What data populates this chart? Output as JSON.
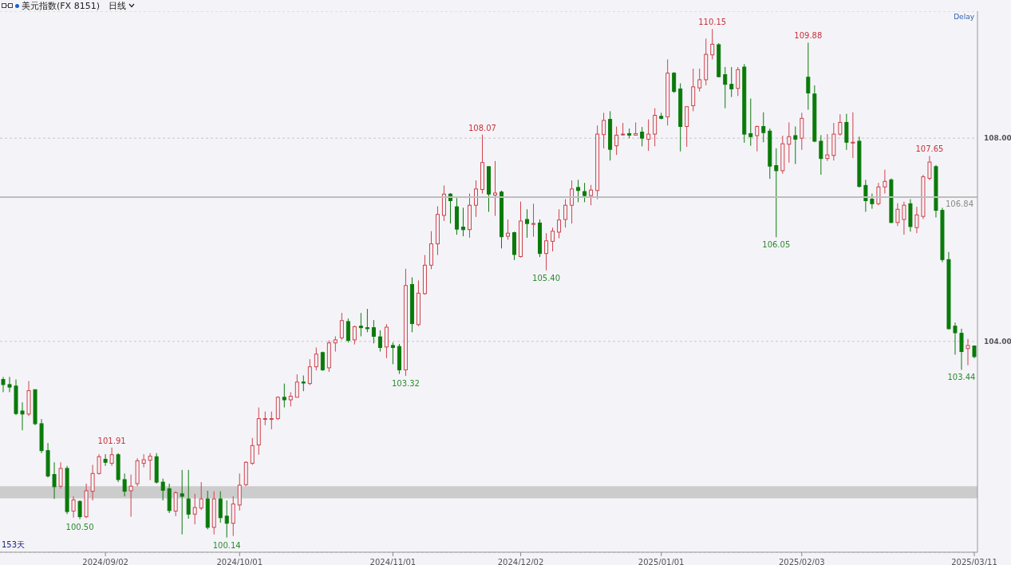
{
  "chart_data": {
    "type": "candlestick",
    "title": "美元指数(FX 8151)",
    "subtitle": "日线",
    "categories": [
      null,
      null,
      null,
      null,
      null,
      null,
      null,
      null,
      null,
      null,
      null,
      null,
      null,
      null,
      null,
      null,
      "2024/09/02",
      null,
      null,
      null,
      null,
      null,
      null,
      null,
      null,
      null,
      null,
      null,
      null,
      null,
      null,
      null,
      null,
      null,
      null,
      null,
      null,
      "2024/10/01",
      null,
      null,
      null,
      null,
      null,
      null,
      null,
      null,
      null,
      null,
      null,
      null,
      null,
      null,
      null,
      null,
      null,
      null,
      null,
      null,
      null,
      null,
      null,
      "2024/11/01",
      null,
      null,
      null,
      null,
      null,
      null,
      null,
      null,
      null,
      null,
      null,
      null,
      null,
      null,
      null,
      null,
      null,
      null,
      null,
      "2024/12/02",
      null,
      null,
      null,
      null,
      null,
      null,
      null,
      null,
      null,
      null,
      null,
      null,
      null,
      null,
      null,
      null,
      null,
      null,
      null,
      null,
      null,
      "2025/01/01",
      null,
      null,
      null,
      null,
      null,
      null,
      null,
      null,
      null,
      null,
      null,
      null,
      null,
      null,
      null,
      null,
      null,
      null,
      null,
      null,
      null,
      "2025/02/03",
      null,
      null,
      null,
      null,
      null,
      null,
      null,
      null,
      null,
      null,
      null,
      null,
      null,
      null,
      null,
      null,
      null,
      null,
      null,
      null,
      null,
      null,
      null,
      null,
      null,
      null,
      "2025/03/11"
    ],
    "ohlc": [
      [
        103.25,
        103.3,
        103.0,
        103.15
      ],
      [
        103.15,
        103.3,
        103.0,
        103.1
      ],
      [
        103.12,
        103.25,
        102.55,
        102.58
      ],
      [
        102.63,
        102.8,
        102.25,
        102.57
      ],
      [
        102.57,
        103.22,
        102.53,
        103.03
      ],
      [
        103.05,
        103.05,
        102.35,
        102.38
      ],
      [
        102.38,
        102.47,
        101.8,
        101.85
      ],
      [
        101.85,
        102.0,
        101.32,
        101.35
      ],
      [
        101.38,
        101.62,
        100.9,
        101.14
      ],
      [
        101.15,
        101.62,
        101.1,
        101.5
      ],
      [
        101.5,
        101.55,
        100.6,
        100.65
      ],
      [
        100.66,
        100.95,
        100.53,
        100.88
      ],
      [
        100.85,
        100.87,
        100.5,
        100.55
      ],
      [
        100.55,
        101.2,
        100.52,
        101.06
      ],
      [
        101.05,
        101.57,
        100.87,
        101.4
      ],
      [
        101.4,
        101.78,
        101.38,
        101.73
      ],
      [
        101.68,
        101.78,
        101.55,
        101.62
      ],
      [
        101.6,
        101.91,
        101.55,
        101.77
      ],
      [
        101.77,
        101.8,
        101.23,
        101.28
      ],
      [
        101.28,
        101.4,
        100.95,
        101.05
      ],
      [
        101.06,
        101.38,
        100.55,
        101.15
      ],
      [
        101.2,
        101.7,
        101.15,
        101.65
      ],
      [
        101.6,
        101.78,
        101.52,
        101.67
      ],
      [
        101.66,
        101.8,
        101.27,
        101.74
      ],
      [
        101.73,
        101.8,
        101.2,
        101.23
      ],
      [
        101.23,
        101.3,
        100.87,
        101.07
      ],
      [
        101.1,
        101.2,
        100.62,
        100.67
      ],
      [
        100.66,
        101.05,
        100.56,
        101.02
      ],
      [
        101.0,
        101.47,
        100.2,
        100.95
      ],
      [
        100.9,
        101.47,
        100.51,
        100.6
      ],
      [
        100.6,
        101.0,
        100.4,
        100.73
      ],
      [
        100.72,
        101.23,
        100.68,
        100.9
      ],
      [
        100.9,
        101.06,
        100.3,
        100.34
      ],
      [
        100.34,
        101.05,
        100.2,
        100.9
      ],
      [
        100.9,
        101.05,
        100.43,
        100.53
      ],
      [
        100.56,
        100.87,
        100.14,
        100.42
      ],
      [
        100.42,
        100.95,
        100.17,
        100.8
      ],
      [
        100.78,
        101.4,
        100.67,
        101.17
      ],
      [
        101.18,
        101.64,
        101.15,
        101.62
      ],
      [
        101.6,
        102.1,
        101.57,
        101.95
      ],
      [
        101.96,
        102.7,
        101.77,
        102.48
      ],
      [
        102.47,
        102.62,
        102.35,
        102.48
      ],
      [
        102.47,
        102.62,
        102.27,
        102.48
      ],
      [
        102.48,
        102.92,
        102.45,
        102.9
      ],
      [
        102.9,
        103.17,
        102.7,
        102.85
      ],
      [
        102.85,
        103.0,
        102.72,
        102.92
      ],
      [
        102.9,
        103.35,
        102.9,
        103.2
      ],
      [
        103.2,
        103.33,
        103.02,
        103.18
      ],
      [
        103.17,
        103.65,
        103.14,
        103.5
      ],
      [
        103.5,
        103.88,
        103.43,
        103.75
      ],
      [
        103.78,
        103.8,
        103.42,
        103.44
      ],
      [
        103.48,
        104.02,
        103.4,
        103.97
      ],
      [
        103.97,
        104.1,
        103.8,
        104.03
      ],
      [
        104.07,
        104.56,
        104.03,
        104.41
      ],
      [
        104.39,
        104.45,
        103.98,
        104.02
      ],
      [
        104.03,
        104.31,
        103.94,
        104.29
      ],
      [
        104.3,
        104.56,
        104.1,
        104.27
      ],
      [
        104.27,
        104.64,
        104.18,
        104.25
      ],
      [
        104.27,
        104.42,
        103.96,
        104.1
      ],
      [
        104.09,
        104.22,
        103.8,
        103.88
      ],
      [
        103.89,
        104.34,
        103.67,
        104.28
      ],
      [
        103.92,
        103.98,
        103.55,
        103.88
      ],
      [
        103.9,
        103.95,
        103.36,
        103.44
      ],
      [
        103.44,
        105.43,
        103.32,
        105.1
      ],
      [
        105.12,
        105.26,
        104.18,
        104.35
      ],
      [
        104.33,
        105.2,
        104.3,
        104.95
      ],
      [
        104.94,
        105.7,
        104.92,
        105.5
      ],
      [
        105.5,
        106.17,
        105.42,
        105.92
      ],
      [
        105.92,
        106.66,
        105.7,
        106.5
      ],
      [
        106.48,
        107.07,
        106.37,
        106.9
      ],
      [
        106.9,
        106.92,
        106.32,
        106.77
      ],
      [
        106.65,
        106.82,
        106.1,
        106.21
      ],
      [
        106.25,
        106.63,
        106.07,
        106.2
      ],
      [
        106.2,
        106.91,
        106.04,
        106.68
      ],
      [
        106.68,
        107.17,
        106.45,
        107.0
      ],
      [
        106.99,
        108.07,
        106.91,
        107.52
      ],
      [
        107.44,
        107.44,
        106.55,
        106.9
      ],
      [
        106.88,
        107.55,
        106.47,
        106.92
      ],
      [
        106.94,
        106.97,
        105.83,
        106.06
      ],
      [
        106.07,
        106.4,
        106.0,
        106.13
      ],
      [
        106.14,
        106.16,
        105.6,
        105.71
      ],
      [
        105.67,
        106.75,
        105.65,
        106.37
      ],
      [
        106.4,
        106.6,
        106.04,
        106.32
      ],
      [
        106.31,
        106.71,
        106.06,
        106.32
      ],
      [
        106.33,
        106.4,
        105.66,
        105.73
      ],
      [
        105.73,
        106.13,
        105.4,
        105.98
      ],
      [
        105.97,
        106.24,
        105.77,
        106.17
      ],
      [
        106.15,
        106.6,
        106.03,
        106.39
      ],
      [
        106.4,
        106.8,
        106.24,
        106.68
      ],
      [
        106.68,
        107.17,
        106.32,
        107.0
      ],
      [
        107.03,
        107.18,
        106.74,
        106.97
      ],
      [
        106.95,
        107.12,
        106.74,
        106.87
      ],
      [
        106.87,
        107.08,
        106.68,
        106.98
      ],
      [
        106.97,
        108.25,
        106.8,
        108.08
      ],
      [
        108.07,
        108.5,
        107.8,
        108.35
      ],
      [
        108.37,
        108.53,
        107.56,
        107.78
      ],
      [
        107.85,
        108.23,
        107.67,
        108.06
      ],
      [
        108.07,
        108.3,
        108.05,
        108.08
      ],
      [
        108.09,
        108.19,
        108.0,
        108.06
      ],
      [
        108.06,
        108.31,
        108.05,
        108.09
      ],
      [
        108.12,
        108.22,
        107.84,
        108.0
      ],
      [
        107.98,
        108.37,
        107.75,
        108.08
      ],
      [
        108.08,
        108.59,
        107.84,
        108.45
      ],
      [
        108.43,
        108.5,
        108.37,
        108.39
      ],
      [
        108.42,
        109.55,
        108.25,
        109.28
      ],
      [
        109.28,
        109.3,
        108.89,
        108.92
      ],
      [
        108.97,
        109.08,
        107.74,
        108.23
      ],
      [
        108.23,
        108.62,
        107.83,
        108.62
      ],
      [
        108.64,
        109.37,
        108.53,
        109.01
      ],
      [
        108.99,
        109.37,
        108.92,
        109.15
      ],
      [
        109.15,
        109.96,
        109.04,
        109.65
      ],
      [
        109.64,
        110.15,
        109.55,
        109.85
      ],
      [
        109.84,
        109.87,
        109.2,
        109.21
      ],
      [
        109.25,
        109.4,
        108.59,
        109.06
      ],
      [
        109.06,
        109.4,
        108.81,
        108.97
      ],
      [
        108.98,
        109.4,
        108.83,
        109.35
      ],
      [
        109.4,
        109.46,
        107.91,
        108.08
      ],
      [
        108.09,
        108.78,
        107.85,
        108.03
      ],
      [
        108.05,
        108.25,
        107.74,
        108.23
      ],
      [
        108.23,
        108.51,
        107.92,
        108.11
      ],
      [
        108.14,
        108.19,
        107.2,
        107.45
      ],
      [
        107.46,
        107.8,
        106.05,
        107.36
      ],
      [
        107.36,
        108.05,
        107.3,
        107.89
      ],
      [
        107.88,
        108.31,
        107.52,
        108.03
      ],
      [
        108.05,
        108.23,
        107.49,
        107.98
      ],
      [
        108.0,
        108.5,
        107.77,
        108.39
      ],
      [
        109.2,
        109.88,
        108.56,
        108.89
      ],
      [
        108.87,
        109.04,
        107.92,
        107.94
      ],
      [
        107.94,
        108.06,
        107.28,
        107.6
      ],
      [
        107.6,
        108.08,
        107.55,
        107.67
      ],
      [
        107.66,
        108.3,
        107.56,
        108.08
      ],
      [
        108.08,
        108.47,
        108.05,
        108.31
      ],
      [
        108.31,
        108.48,
        107.77,
        107.92
      ],
      [
        107.92,
        108.51,
        107.61,
        107.92
      ],
      [
        107.94,
        108.03,
        107.03,
        107.05
      ],
      [
        107.07,
        107.18,
        106.55,
        106.77
      ],
      [
        106.8,
        106.91,
        106.61,
        106.71
      ],
      [
        106.71,
        107.12,
        106.68,
        107.04
      ],
      [
        107.04,
        107.38,
        106.91,
        107.15
      ],
      [
        107.18,
        107.21,
        106.33,
        106.34
      ],
      [
        106.34,
        106.72,
        106.27,
        106.6
      ],
      [
        106.4,
        106.75,
        106.1,
        106.68
      ],
      [
        106.71,
        106.8,
        106.16,
        106.26
      ],
      [
        106.24,
        106.65,
        106.13,
        106.49
      ],
      [
        106.46,
        107.28,
        106.41,
        107.24
      ],
      [
        107.21,
        107.65,
        107.17,
        107.53
      ],
      [
        107.44,
        107.47,
        106.44,
        106.58
      ],
      [
        106.58,
        106.63,
        105.56,
        105.61
      ],
      [
        105.61,
        105.76,
        104.23,
        104.25
      ],
      [
        104.3,
        104.37,
        103.74,
        104.17
      ],
      [
        104.16,
        104.25,
        103.44,
        103.8
      ],
      [
        103.86,
        104.05,
        103.53,
        103.92
      ],
      [
        103.91,
        103.92,
        103.67,
        103.7
      ]
    ],
    "ylim": [
      99.85,
      110.5
    ],
    "yticks": [
      {
        "value": 104,
        "label": "104.00"
      },
      {
        "value": 108,
        "label": "108.00"
      }
    ],
    "grid": "y",
    "ref_lines": [
      {
        "axis": "y",
        "value": 106.84,
        "label": "106.84",
        "color": "#bdbdbd"
      }
    ],
    "bands": [
      {
        "axis": "y",
        "from": 100.91,
        "to": 101.15,
        "color": "#c4c4c4"
      }
    ],
    "annotations": [
      "Delay",
      "153天",
      {
        "text": "101.91",
        "y": 101.91
      },
      {
        "text": "100.50",
        "y": 100.5
      },
      {
        "text": "100.14",
        "y": 100.14
      },
      {
        "text": "103.32",
        "y": 103.32
      },
      {
        "text": "108.07",
        "y": 108.07
      },
      {
        "text": "105.40",
        "y": 105.4
      },
      {
        "text": "110.15",
        "y": 110.15
      },
      {
        "text": "106.05",
        "y": 106.05
      },
      {
        "text": "109.88",
        "y": 109.88
      },
      {
        "text": "107.65",
        "y": 107.65
      },
      {
        "text": "103.44",
        "y": 103.44
      }
    ]
  }
}
